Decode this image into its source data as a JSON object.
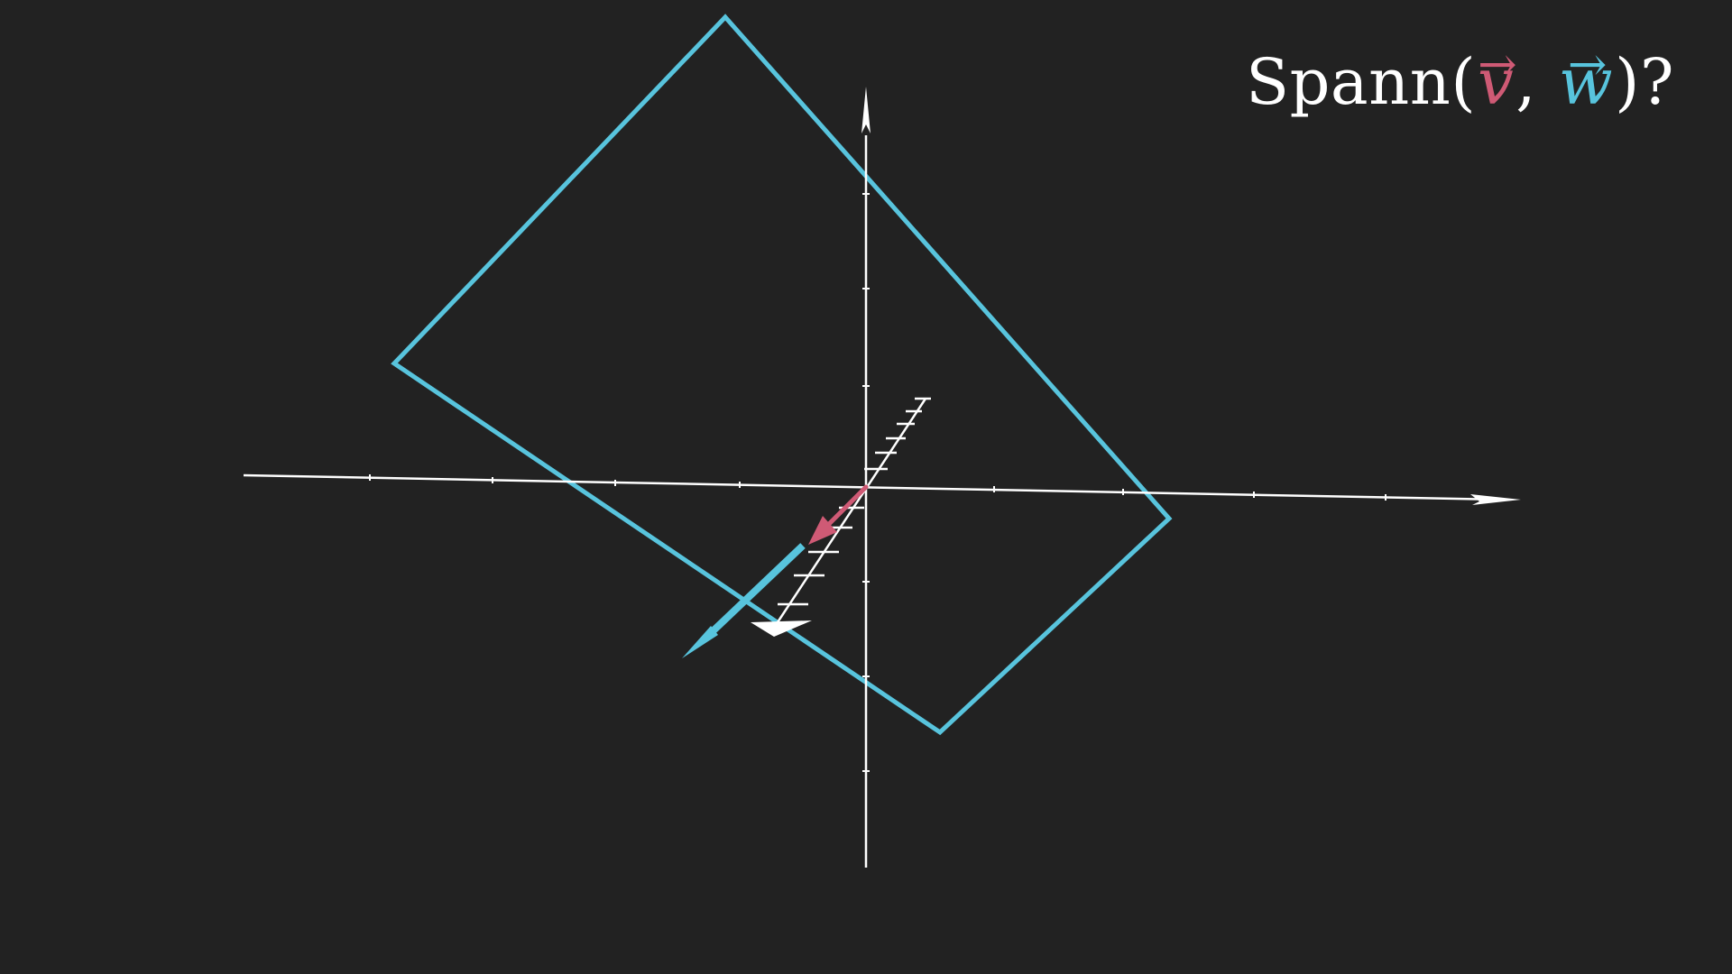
{
  "label": {
    "prefix": "Spann(",
    "separator": ",",
    "suffix": ")?",
    "v_symbol": "v",
    "w_symbol": "w",
    "arrow_glyph": "→"
  },
  "colors": {
    "background": "#222222",
    "axes": "#ffffff",
    "plane": "#58c4dd",
    "vector_v": "#cf5a75",
    "vector_w": "#58c4dd"
  }
}
